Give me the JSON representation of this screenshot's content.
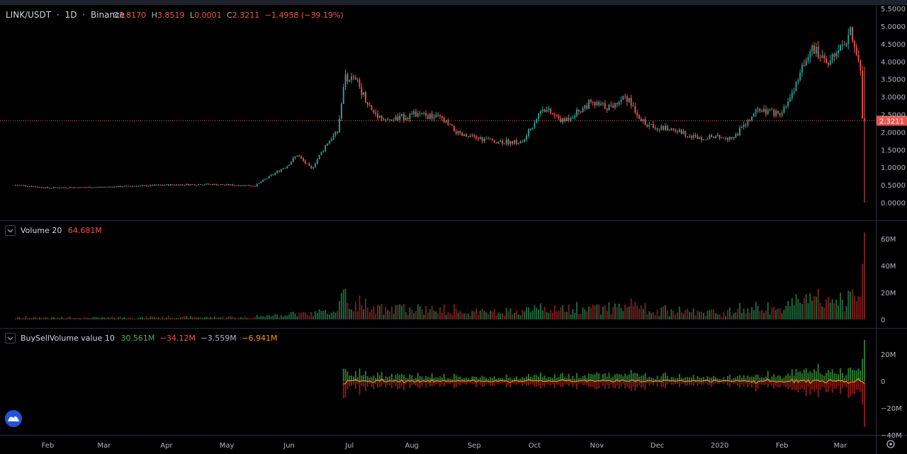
{
  "header": {
    "symbol": "LINK/USDT",
    "sep1": "·",
    "interval": "1D",
    "sep2": "·",
    "exchange": "Binance",
    "o_label": "O",
    "o_value": "3.8170",
    "h_label": "H",
    "h_value": "3.8519",
    "l_label": "L",
    "l_value": "0.0001",
    "c_label": "C",
    "c_value": "2.3211",
    "change": "−1.4958 (−39.19%)"
  },
  "colors": {
    "up": "#26a69a",
    "down": "#ef5350",
    "vol_up": "#1d6b3e",
    "vol_down": "#7c1f1f",
    "bs_up": "#2e7d32",
    "bs_down": "#8b1a1a",
    "ma_line": "#f5a623",
    "last_price_bg": "#ef5350"
  },
  "price_axis": {
    "ticks": [
      "5.5000",
      "5.0000",
      "4.5000",
      "4.0000",
      "3.5000",
      "3.0000",
      "2.5000",
      "2.0000",
      "1.5000",
      "1.0000",
      "0.5000",
      "0.0000"
    ],
    "last_price": "2.3211"
  },
  "volume_pane": {
    "label": "Volume 20",
    "value": "64.681M",
    "ticks": [
      "60M",
      "40M",
      "20M",
      "0"
    ]
  },
  "buysell_pane": {
    "label": "BuySellVolume value 10",
    "v1": "30.561M",
    "v2": "−34.12M",
    "v3": "−3.559M",
    "v4": "−6.941M",
    "ticks": [
      "20M",
      "0",
      "−20M",
      "−40M"
    ]
  },
  "time_axis": {
    "labels": [
      "Feb",
      "Mar",
      "Apr",
      "May",
      "Jun",
      "Jul",
      "Aug",
      "Sep",
      "Oct",
      "Nov",
      "Dec",
      "2020",
      "Feb",
      "Mar"
    ]
  },
  "chart_data": {
    "type": "candlestick",
    "title": "LINK/USDT · 1D · Binance",
    "ylim": [
      0,
      5.5
    ],
    "x_start": "2019-01-16",
    "x_end": "2020-03-13",
    "last_close": 2.3211,
    "anchors_close": [
      [
        "2019-01-16",
        0.5
      ],
      [
        "2019-02-01",
        0.42
      ],
      [
        "2019-03-01",
        0.44
      ],
      [
        "2019-04-01",
        0.5
      ],
      [
        "2019-04-20",
        0.52
      ],
      [
        "2019-05-15",
        0.48
      ],
      [
        "2019-05-31",
        1.05
      ],
      [
        "2019-06-05",
        1.35
      ],
      [
        "2019-06-12",
        0.95
      ],
      [
        "2019-06-20",
        1.7
      ],
      [
        "2019-06-25",
        2.0
      ],
      [
        "2019-06-29",
        3.6
      ],
      [
        "2019-07-05",
        3.4
      ],
      [
        "2019-07-12",
        2.6
      ],
      [
        "2019-07-20",
        2.3
      ],
      [
        "2019-08-01",
        2.5
      ],
      [
        "2019-08-15",
        2.4
      ],
      [
        "2019-08-25",
        1.9
      ],
      [
        "2019-09-10",
        1.75
      ],
      [
        "2019-09-25",
        1.7
      ],
      [
        "2019-10-05",
        2.7
      ],
      [
        "2019-10-15",
        2.3
      ],
      [
        "2019-10-28",
        2.8
      ],
      [
        "2019-11-08",
        2.7
      ],
      [
        "2019-11-15",
        3.05
      ],
      [
        "2019-11-25",
        2.2
      ],
      [
        "2019-12-10",
        2.05
      ],
      [
        "2019-12-20",
        1.85
      ],
      [
        "2020-01-08",
        1.85
      ],
      [
        "2020-01-20",
        2.6
      ],
      [
        "2020-02-01",
        2.5
      ],
      [
        "2020-02-10",
        3.6
      ],
      [
        "2020-02-15",
        4.4
      ],
      [
        "2020-02-25",
        4.0
      ],
      [
        "2020-03-01",
        4.3
      ],
      [
        "2020-03-06",
        4.8
      ],
      [
        "2020-03-11",
        3.8
      ],
      [
        "2020-03-12",
        2.32
      ]
    ],
    "volume_unit": "M",
    "volume_last": 64.681,
    "buysell_last": {
      "buy": 30.561,
      "sell": -34.12,
      "net": -3.559,
      "ma10": -6.941
    }
  }
}
